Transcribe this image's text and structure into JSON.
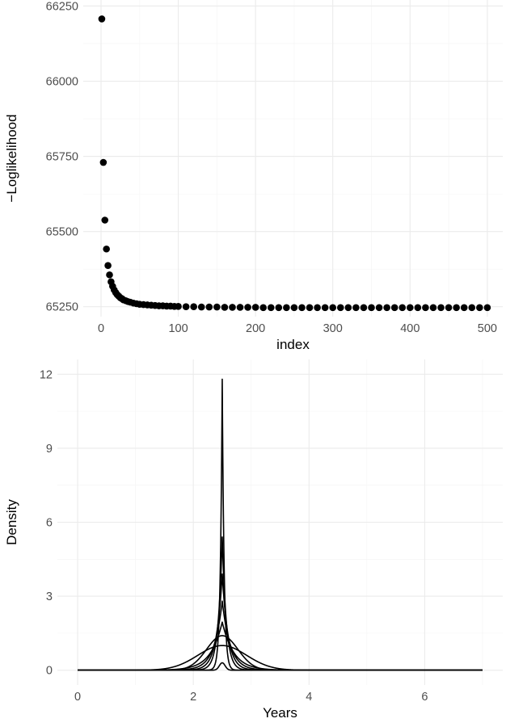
{
  "chart_data": [
    {
      "type": "scatter",
      "xlabel": "index",
      "ylabel": "−Loglikelihood",
      "xlim": [
        -23,
        520
      ],
      "ylim": [
        65217,
        66270
      ],
      "x_ticks": [
        0,
        100,
        200,
        300,
        400,
        500
      ],
      "y_ticks": [
        65250,
        65500,
        65750,
        66000,
        66250
      ],
      "grid": true,
      "points": [
        [
          1,
          66207
        ],
        [
          3,
          65730
        ],
        [
          5,
          65538
        ],
        [
          7,
          65442
        ],
        [
          9,
          65387
        ],
        [
          11,
          65356
        ],
        [
          13,
          65333
        ],
        [
          15,
          65318
        ],
        [
          17,
          65306
        ],
        [
          19,
          65297
        ],
        [
          21,
          65290
        ],
        [
          23,
          65285
        ],
        [
          25,
          65280
        ],
        [
          27,
          65277
        ],
        [
          29,
          65273
        ],
        [
          32,
          65270
        ],
        [
          35,
          65267
        ],
        [
          38,
          65265
        ],
        [
          42,
          65262
        ],
        [
          46,
          65260
        ],
        [
          50,
          65258
        ],
        [
          55,
          65257
        ],
        [
          60,
          65256
        ],
        [
          65,
          65255
        ],
        [
          70,
          65254
        ],
        [
          75,
          65253
        ],
        [
          80,
          65253
        ],
        [
          85,
          65252
        ],
        [
          90,
          65252
        ],
        [
          95,
          65251
        ],
        [
          100,
          65251
        ],
        [
          110,
          65250
        ],
        [
          120,
          65250
        ],
        [
          130,
          65249
        ],
        [
          140,
          65249
        ],
        [
          150,
          65249
        ],
        [
          160,
          65248
        ],
        [
          170,
          65248
        ],
        [
          180,
          65248
        ],
        [
          190,
          65248
        ],
        [
          200,
          65248
        ],
        [
          210,
          65247
        ],
        [
          220,
          65247
        ],
        [
          230,
          65247
        ],
        [
          240,
          65247
        ],
        [
          250,
          65247
        ],
        [
          260,
          65247
        ],
        [
          270,
          65247
        ],
        [
          280,
          65247
        ],
        [
          290,
          65247
        ],
        [
          300,
          65247
        ],
        [
          310,
          65247
        ],
        [
          320,
          65247
        ],
        [
          330,
          65247
        ],
        [
          340,
          65247
        ],
        [
          350,
          65247
        ],
        [
          360,
          65247
        ],
        [
          370,
          65247
        ],
        [
          380,
          65247
        ],
        [
          390,
          65247
        ],
        [
          400,
          65247
        ],
        [
          410,
          65247
        ],
        [
          420,
          65247
        ],
        [
          430,
          65247
        ],
        [
          440,
          65247
        ],
        [
          450,
          65247
        ],
        [
          460,
          65247
        ],
        [
          470,
          65247
        ],
        [
          480,
          65247
        ],
        [
          490,
          65247
        ],
        [
          500,
          65247
        ]
      ]
    },
    {
      "type": "line",
      "xlabel": "Years",
      "ylabel": "Density",
      "xlim": [
        -0.35,
        7.35
      ],
      "ylim": [
        -0.6,
        12.6
      ],
      "x_ticks": [
        0,
        2,
        4,
        6
      ],
      "y_ticks": [
        0,
        3,
        6,
        9,
        12
      ],
      "grid": true,
      "x_range": [
        0,
        7
      ],
      "center": 2.5,
      "curves": [
        {
          "shape": "gaussian",
          "peak": 1.0,
          "spread": 0.42
        },
        {
          "shape": "gaussian",
          "peak": 1.4,
          "spread": 0.27
        },
        {
          "shape": "laplace",
          "peak": 1.95,
          "spread": 0.2
        },
        {
          "shape": "laplace",
          "peak": 2.8,
          "spread": 0.14
        },
        {
          "shape": "laplace",
          "peak": 3.9,
          "spread": 0.1
        },
        {
          "shape": "laplace",
          "peak": 5.4,
          "spread": 0.07
        },
        {
          "shape": "laplace",
          "peak": 11.8,
          "spread": 0.032
        },
        {
          "shape": "gaussian",
          "peak": 0.3,
          "spread": 0.05
        }
      ]
    }
  ]
}
